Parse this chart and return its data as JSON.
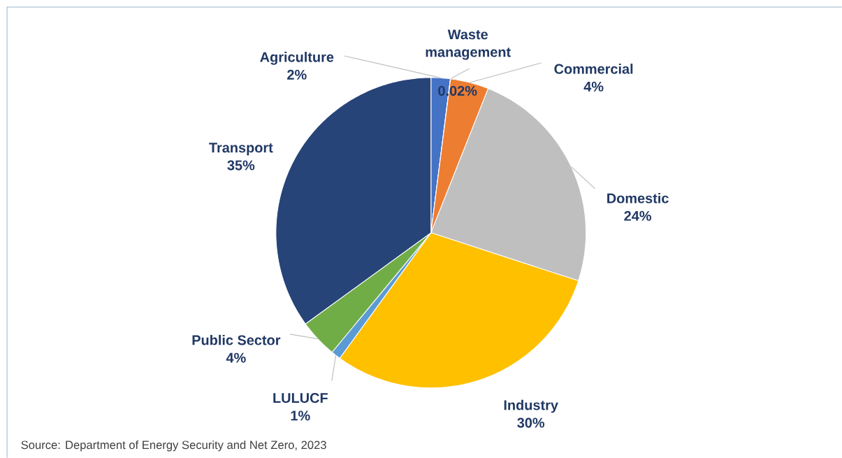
{
  "chart_data": {
    "type": "pie",
    "categories": [
      "Agriculture",
      "Waste management",
      "Commercial",
      "Domestic",
      "Industry",
      "LULUCF",
      "Public Sector",
      "Transport"
    ],
    "values": [
      2,
      0.02,
      4,
      24,
      30,
      1,
      4,
      35
    ],
    "colors": [
      "#4472c4",
      "#ed7d31",
      "#ed7d31",
      "#bfbfbf",
      "#ffc000",
      "#5b9bd5",
      "#70ad47",
      "#264478"
    ],
    "value_labels": [
      "2%",
      "0.02%",
      "4%",
      "24%",
      "30%",
      "1%",
      "4%",
      "35%"
    ],
    "annotations": [
      "Source: Department of Energy Security and Net Zero, 2023"
    ]
  }
}
